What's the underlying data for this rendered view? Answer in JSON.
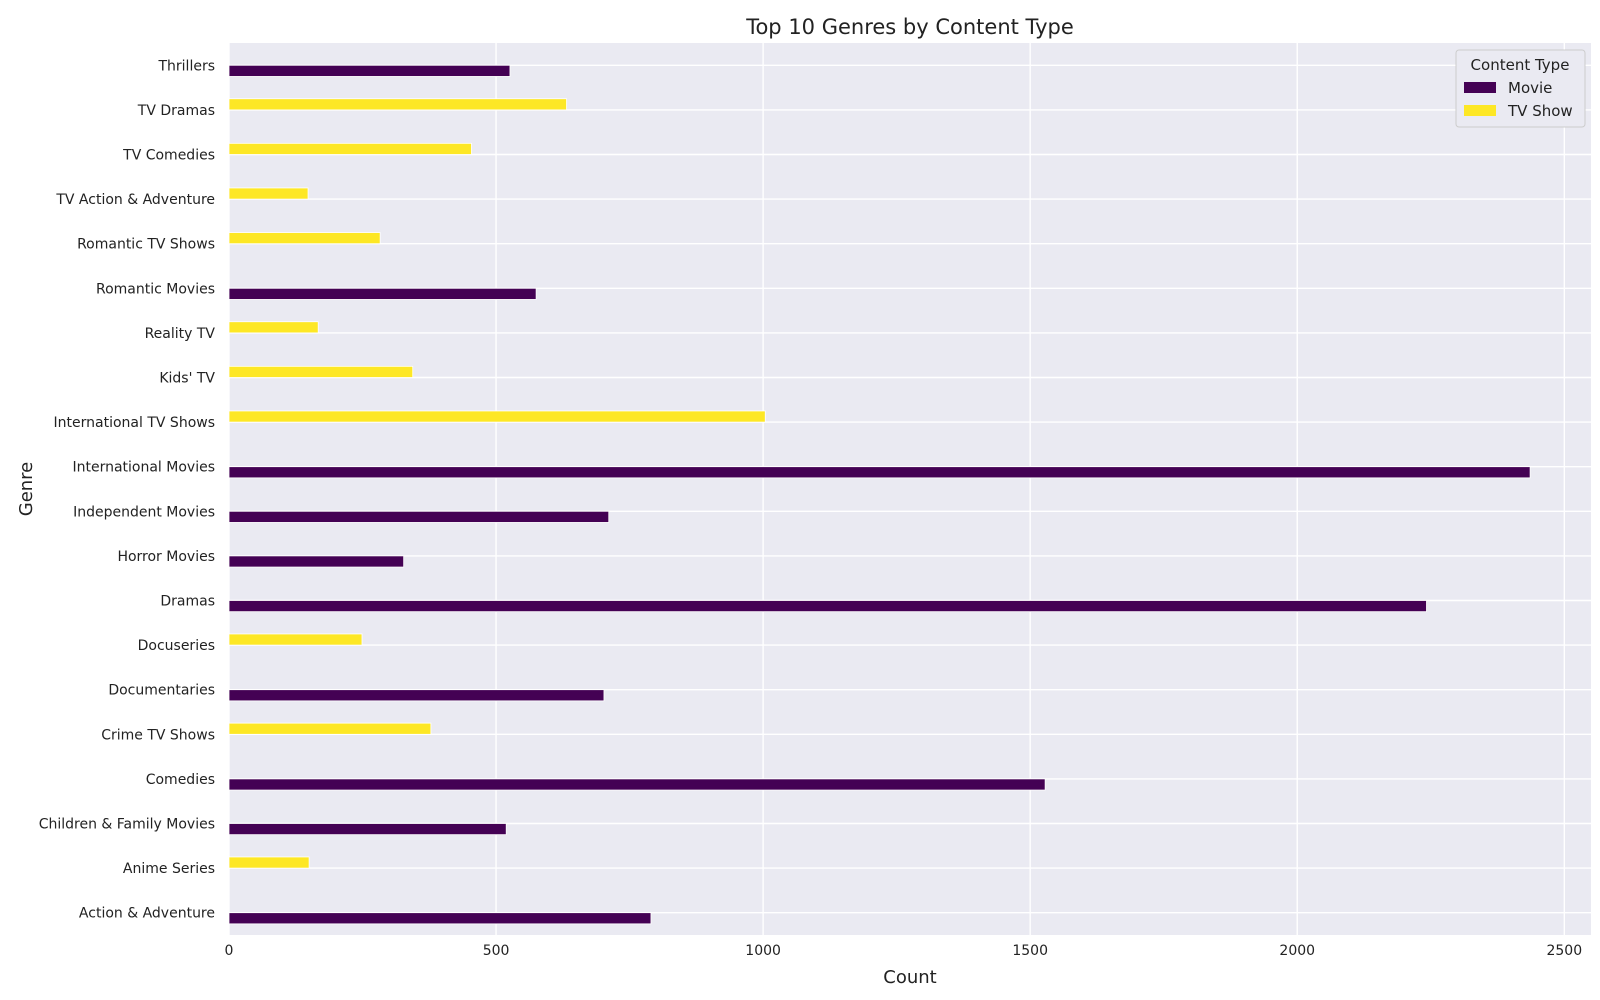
{
  "chart_data": {
    "type": "bar",
    "orientation": "horizontal",
    "title": "Top 10 Genres by Content Type",
    "xlabel": "Count",
    "ylabel": "Genre",
    "xlim": [
      0,
      2550
    ],
    "xticks": [
      0,
      500,
      1000,
      1500,
      2000,
      2500
    ],
    "grid": true,
    "legend_position": "top-right",
    "legend_title": "Content Type",
    "categories": [
      "Action & Adventure",
      "Anime Series",
      "Children & Family Movies",
      "Comedies",
      "Crime TV Shows",
      "Documentaries",
      "Docuseries",
      "Dramas",
      "Horror Movies",
      "Independent Movies",
      "International Movies",
      "International TV Shows",
      "Kids' TV",
      "Reality TV",
      "Romantic Movies",
      "Romantic TV Shows",
      "TV Action & Adventure",
      "TV Comedies",
      "TV Dramas",
      "Thrillers"
    ],
    "series": [
      {
        "name": "Movie",
        "color": "#440154",
        "values": [
          790,
          0,
          519,
          1528,
          0,
          702,
          0,
          2242,
          327,
          711,
          2436,
          0,
          0,
          0,
          575,
          0,
          0,
          0,
          0,
          526
        ]
      },
      {
        "name": "TV Show",
        "color": "#fde725",
        "values": [
          0,
          150,
          0,
          0,
          378,
          0,
          249,
          0,
          0,
          0,
          0,
          1004,
          344,
          167,
          0,
          283,
          148,
          454,
          632,
          0
        ]
      }
    ]
  }
}
